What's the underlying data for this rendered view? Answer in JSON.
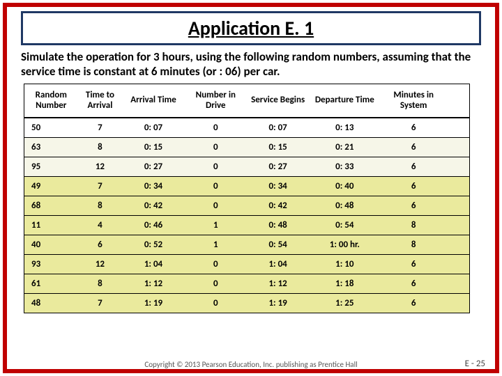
{
  "title": "Application E. 1",
  "prompt": "Simulate the operation for 3 hours, using the following random numbers, assuming that the service time is constant at 6 minutes (or : 06) per car.",
  "table": {
    "headers": [
      "Random Number",
      "Time to Arrival",
      "Arrival Time",
      "Number in Drive",
      "Service Begins",
      "Departure Time",
      "Minutes in System"
    ],
    "rows": [
      {
        "hl": "",
        "cells": [
          "50",
          "7",
          "0: 07",
          "0",
          "0: 07",
          "0: 13",
          "6"
        ]
      },
      {
        "hl": "light",
        "cells": [
          "63",
          "8",
          "0: 15",
          "0",
          "0: 15",
          "0: 21",
          "6"
        ]
      },
      {
        "hl": "light",
        "cells": [
          "95",
          "12",
          "0: 27",
          "0",
          "0: 27",
          "0: 33",
          "6"
        ]
      },
      {
        "hl": "dark",
        "cells": [
          "49",
          "7",
          "0: 34",
          "0",
          "0: 34",
          "0: 40",
          "6"
        ]
      },
      {
        "hl": "dark",
        "cells": [
          "68",
          "8",
          "0: 42",
          "0",
          "0: 42",
          "0: 48",
          "6"
        ]
      },
      {
        "hl": "dark",
        "cells": [
          "11",
          "4",
          "0: 46",
          "1",
          "0: 48",
          "0: 54",
          "8"
        ]
      },
      {
        "hl": "dark",
        "cells": [
          "40",
          "6",
          "0: 52",
          "1",
          "0: 54",
          "1: 00 hr.",
          "8"
        ]
      },
      {
        "hl": "dark",
        "cells": [
          "93",
          "12",
          "1: 04",
          "0",
          "1: 04",
          "1: 10",
          "6"
        ]
      },
      {
        "hl": "dark",
        "cells": [
          "61",
          "8",
          "1: 12",
          "0",
          "1: 12",
          "1: 18",
          "6"
        ]
      },
      {
        "hl": "dark",
        "cells": [
          "48",
          "7",
          "1: 19",
          "0",
          "1: 19",
          "1: 25",
          "6"
        ]
      }
    ]
  },
  "copyright": "Copyright © 2013 Pearson Education, Inc. publishing as Prentice Hall",
  "slide_num": "E - 25",
  "colors": {
    "frame": "#c00000",
    "title_border": "#1f3864",
    "hl_light": "#f6f6e8",
    "hl_dark": "#eaea9d"
  }
}
